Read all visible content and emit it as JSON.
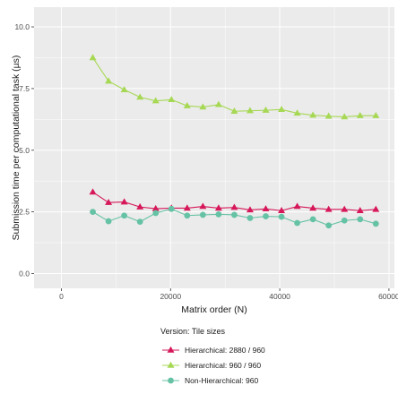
{
  "chart_data": {
    "type": "line",
    "xlabel": "Matrix order (N)",
    "ylabel": "Submission time per computational task (µs)",
    "xlim": [
      -5000,
      61000
    ],
    "ylim": [
      -0.6,
      10.8
    ],
    "x_ticks": [
      0,
      20000,
      40000,
      60000
    ],
    "x_tick_labels": [
      "0",
      "20000",
      "40000",
      "60000"
    ],
    "y_ticks": [
      0,
      2.5,
      5,
      7.5,
      10
    ],
    "y_tick_labels": [
      "0.0",
      "2.5",
      "5.0",
      "7.5",
      "10.0"
    ],
    "grid": true,
    "legend_position": "bottom",
    "legend_title": "Version: Tile sizes",
    "x": [
      5760,
      8640,
      11520,
      14400,
      17280,
      20160,
      23040,
      25920,
      28800,
      31680,
      34560,
      37440,
      40320,
      43200,
      46080,
      48960,
      51840,
      54720,
      57600
    ],
    "series": [
      {
        "name": "Hierarchical: 2880 / 960",
        "color": "#d6185a",
        "marker": "triangle",
        "values": [
          3.3,
          2.88,
          2.9,
          2.7,
          2.63,
          2.65,
          2.65,
          2.72,
          2.65,
          2.68,
          2.58,
          2.62,
          2.55,
          2.72,
          2.65,
          2.6,
          2.6,
          2.55,
          2.6
        ]
      },
      {
        "name": "Hierarchical: 960 / 960",
        "color": "#a6d854",
        "marker": "triangle",
        "values": [
          8.75,
          7.8,
          7.45,
          7.15,
          7.0,
          7.05,
          6.8,
          6.75,
          6.85,
          6.58,
          6.6,
          6.62,
          6.65,
          6.5,
          6.42,
          6.38,
          6.35,
          6.4,
          6.4
        ]
      },
      {
        "name": "Non-Hierarchical: 960",
        "color": "#66c2a5",
        "marker": "circle",
        "values": [
          2.5,
          2.12,
          2.35,
          2.1,
          2.45,
          2.62,
          2.35,
          2.38,
          2.4,
          2.38,
          2.25,
          2.32,
          2.3,
          2.05,
          2.2,
          1.95,
          2.15,
          2.2,
          2.02
        ]
      }
    ]
  }
}
